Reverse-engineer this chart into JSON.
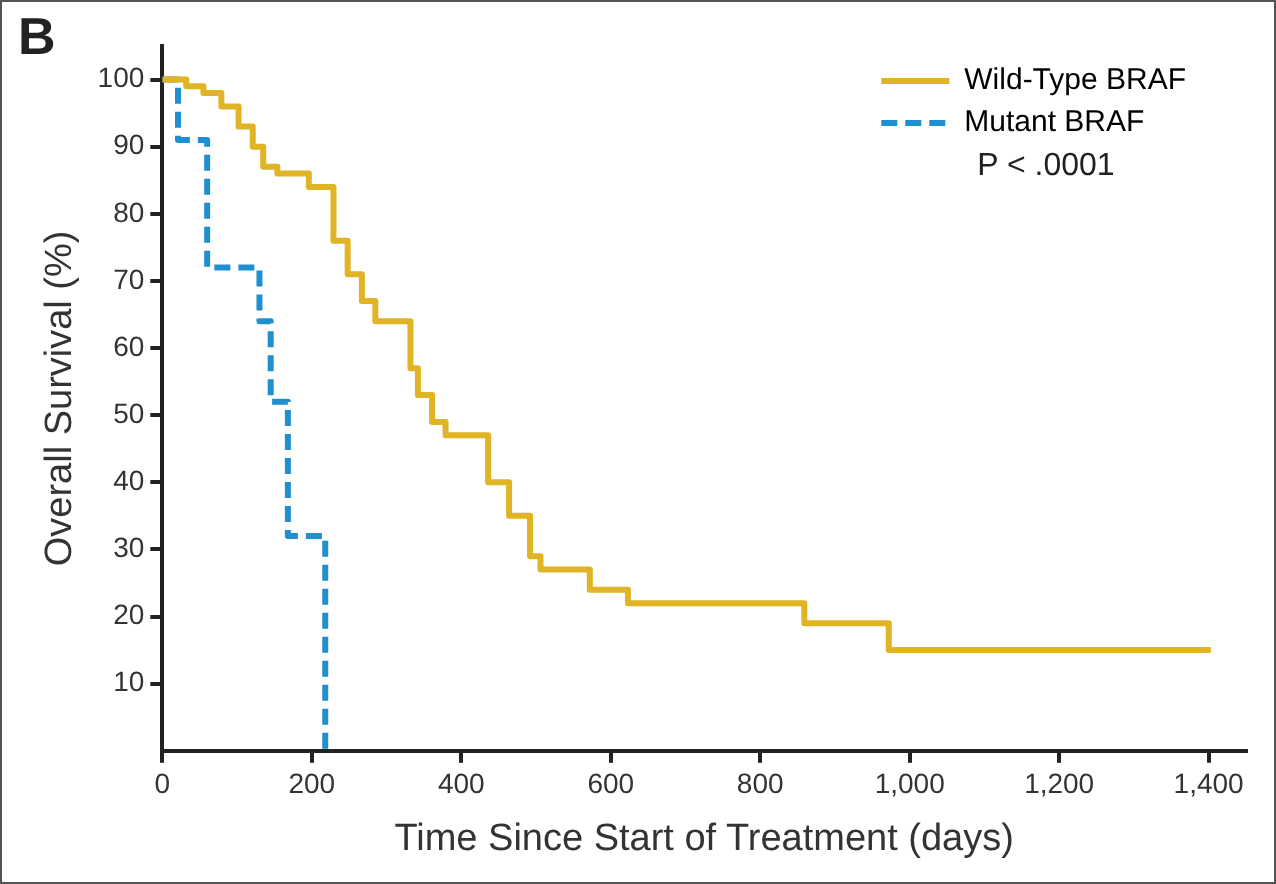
{
  "chart_data": {
    "type": "step",
    "xlabel": "Time Since Start of Treatment (days)",
    "ylabel": "Overall Survival (%)",
    "annotations": [
      "B",
      "P < .0001"
    ],
    "xlim": [
      0,
      1450
    ],
    "xticks": [
      0,
      200,
      400,
      600,
      800,
      {
        "value": 1000,
        "label": "1,000"
      },
      {
        "value": 1200,
        "label": "1,200"
      },
      {
        "value": 1400,
        "label": "1,400"
      }
    ],
    "ylim": [
      0,
      105
    ],
    "yticks": [
      10,
      20,
      30,
      40,
      50,
      60,
      70,
      80,
      90,
      100
    ],
    "grid": false,
    "legend": "top right",
    "marker": "none",
    "series": [
      {
        "name": "Wild-Type BRAF",
        "color": "#e0b424",
        "line_style": "solid",
        "x": [
          0,
          32,
          55,
          79,
          102,
          121,
          135,
          154,
          196,
          229,
          248,
          267,
          285,
          332,
          342,
          361,
          379,
          436,
          464,
          492,
          506,
          572,
          623,
          859,
          972,
          1403
        ],
        "values": [
          100,
          99,
          98,
          96,
          93,
          90,
          87,
          86,
          84,
          76,
          71,
          67,
          64,
          57,
          53,
          49,
          47,
          40,
          35,
          29,
          27,
          24,
          22,
          19,
          15,
          15
        ]
      },
      {
        "name": "Mutant BRAF",
        "color": "#1f8fd0",
        "line_style": "dashed",
        "x": [
          0,
          21,
          60,
          130,
          145,
          168,
          218
        ],
        "values": [
          100,
          91,
          72,
          64,
          52,
          32,
          0
        ]
      }
    ]
  }
}
